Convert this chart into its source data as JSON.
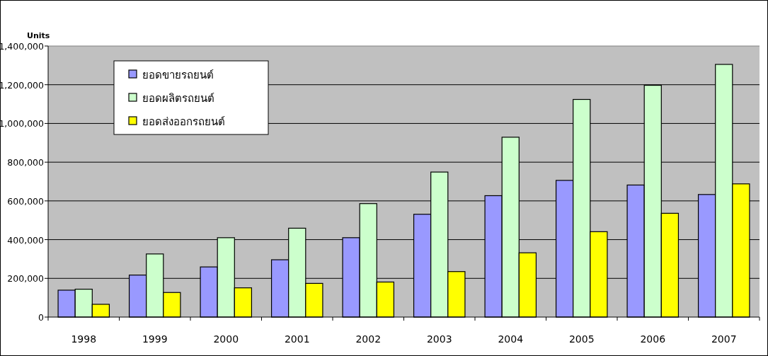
{
  "chart_data": {
    "type": "bar",
    "ylabel": "Units",
    "categories": [
      "1998",
      "1999",
      "2000",
      "2001",
      "2002",
      "2003",
      "2004",
      "2005",
      "2006",
      "2007"
    ],
    "series": [
      {
        "name": "ยอดขายรถยนต์",
        "color": "#9999ff",
        "values": [
          139000,
          217000,
          259000,
          296000,
          410000,
          531000,
          627000,
          706000,
          682000,
          633000
        ]
      },
      {
        "name": "ยอดผลิตรถยนต์",
        "color": "#ccffcc",
        "values": [
          144000,
          326000,
          410000,
          459000,
          586000,
          749000,
          929000,
          1124000,
          1197000,
          1305000
        ]
      },
      {
        "name": "ยอดส่งออกรถยนต์",
        "color": "#ffff00",
        "values": [
          66000,
          127000,
          151000,
          174000,
          181000,
          235000,
          332000,
          441000,
          536000,
          688000
        ]
      }
    ],
    "ylim": [
      0,
      1400000
    ],
    "yticks": [
      0,
      {
        "value": 200000,
        "label": "200,000"
      },
      {
        "value": 400000,
        "label": "400,000"
      },
      {
        "value": 600000,
        "label": "600,000"
      },
      {
        "value": 800000,
        "label": "800,000"
      },
      {
        "value": 1000000,
        "label": "1,000,000"
      },
      {
        "value": 1200000,
        "label": "1,200,000"
      },
      {
        "value": 1400000,
        "label": "1,400,000"
      }
    ],
    "grid": "y",
    "legend": "top left"
  }
}
